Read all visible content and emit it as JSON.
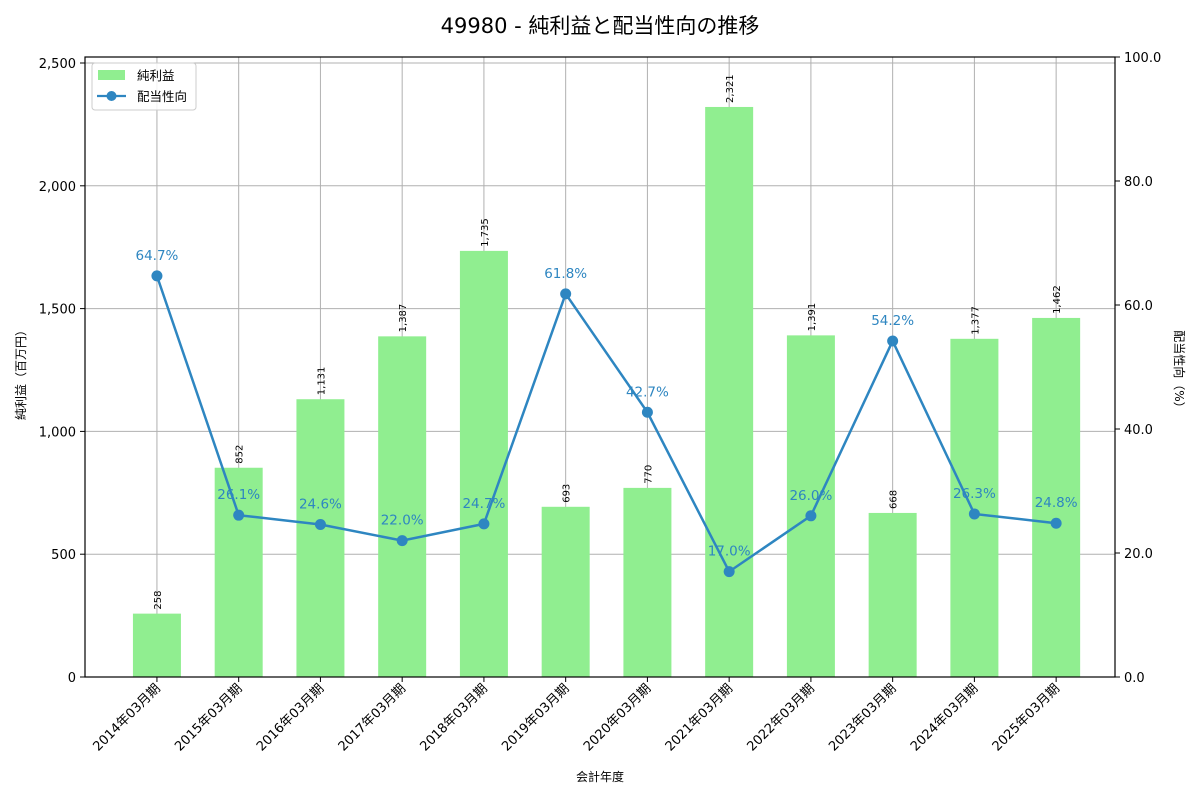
{
  "chart_data": {
    "type": "bar+line",
    "title": "49980 - 純利益と配当性向の推移",
    "xlabel": "会計年度",
    "ylabel_left": "純利益（百万円）",
    "ylabel_right": "配当性向（%）",
    "categories": [
      "2014年03月期",
      "2015年03月期",
      "2016年03月期",
      "2017年03月期",
      "2018年03月期",
      "2019年03月期",
      "2020年03月期",
      "2021年03月期",
      "2022年03月期",
      "2023年03月期",
      "2024年03月期",
      "2025年03月期"
    ],
    "series": [
      {
        "name": "純利益",
        "type": "bar",
        "axis": "left",
        "color": "#90ee90",
        "values": [
          258,
          852,
          1131,
          1387,
          1735,
          693,
          770,
          2321,
          1391,
          668,
          1377,
          1462
        ],
        "labels": [
          "258",
          "852",
          "1,131",
          "1,387",
          "1,735",
          "693",
          "770",
          "2,321",
          "1,391",
          "668",
          "1,377",
          "1,462"
        ]
      },
      {
        "name": "配当性向",
        "type": "line",
        "axis": "right",
        "color": "#2e86c1",
        "values": [
          64.7,
          26.1,
          24.6,
          22.0,
          24.7,
          61.8,
          42.7,
          17.0,
          26.0,
          54.2,
          26.3,
          24.8
        ],
        "labels": [
          "64.7%",
          "26.1%",
          "24.6%",
          "22.0%",
          "24.7%",
          "61.8%",
          "42.7%",
          "17.0%",
          "26.0%",
          "54.2%",
          "26.3%",
          "24.8%"
        ]
      }
    ],
    "ylim_left": [
      0,
      2500
    ],
    "yticks_left": [
      "0",
      "500",
      "1,000",
      "1,500",
      "2,000",
      "2,500"
    ],
    "ylim_right": [
      0,
      100
    ],
    "yticks_right": [
      "0.0",
      "20.0",
      "40.0",
      "60.0",
      "80.0",
      "100.0"
    ],
    "grid": true,
    "legend_position": "upper left"
  }
}
